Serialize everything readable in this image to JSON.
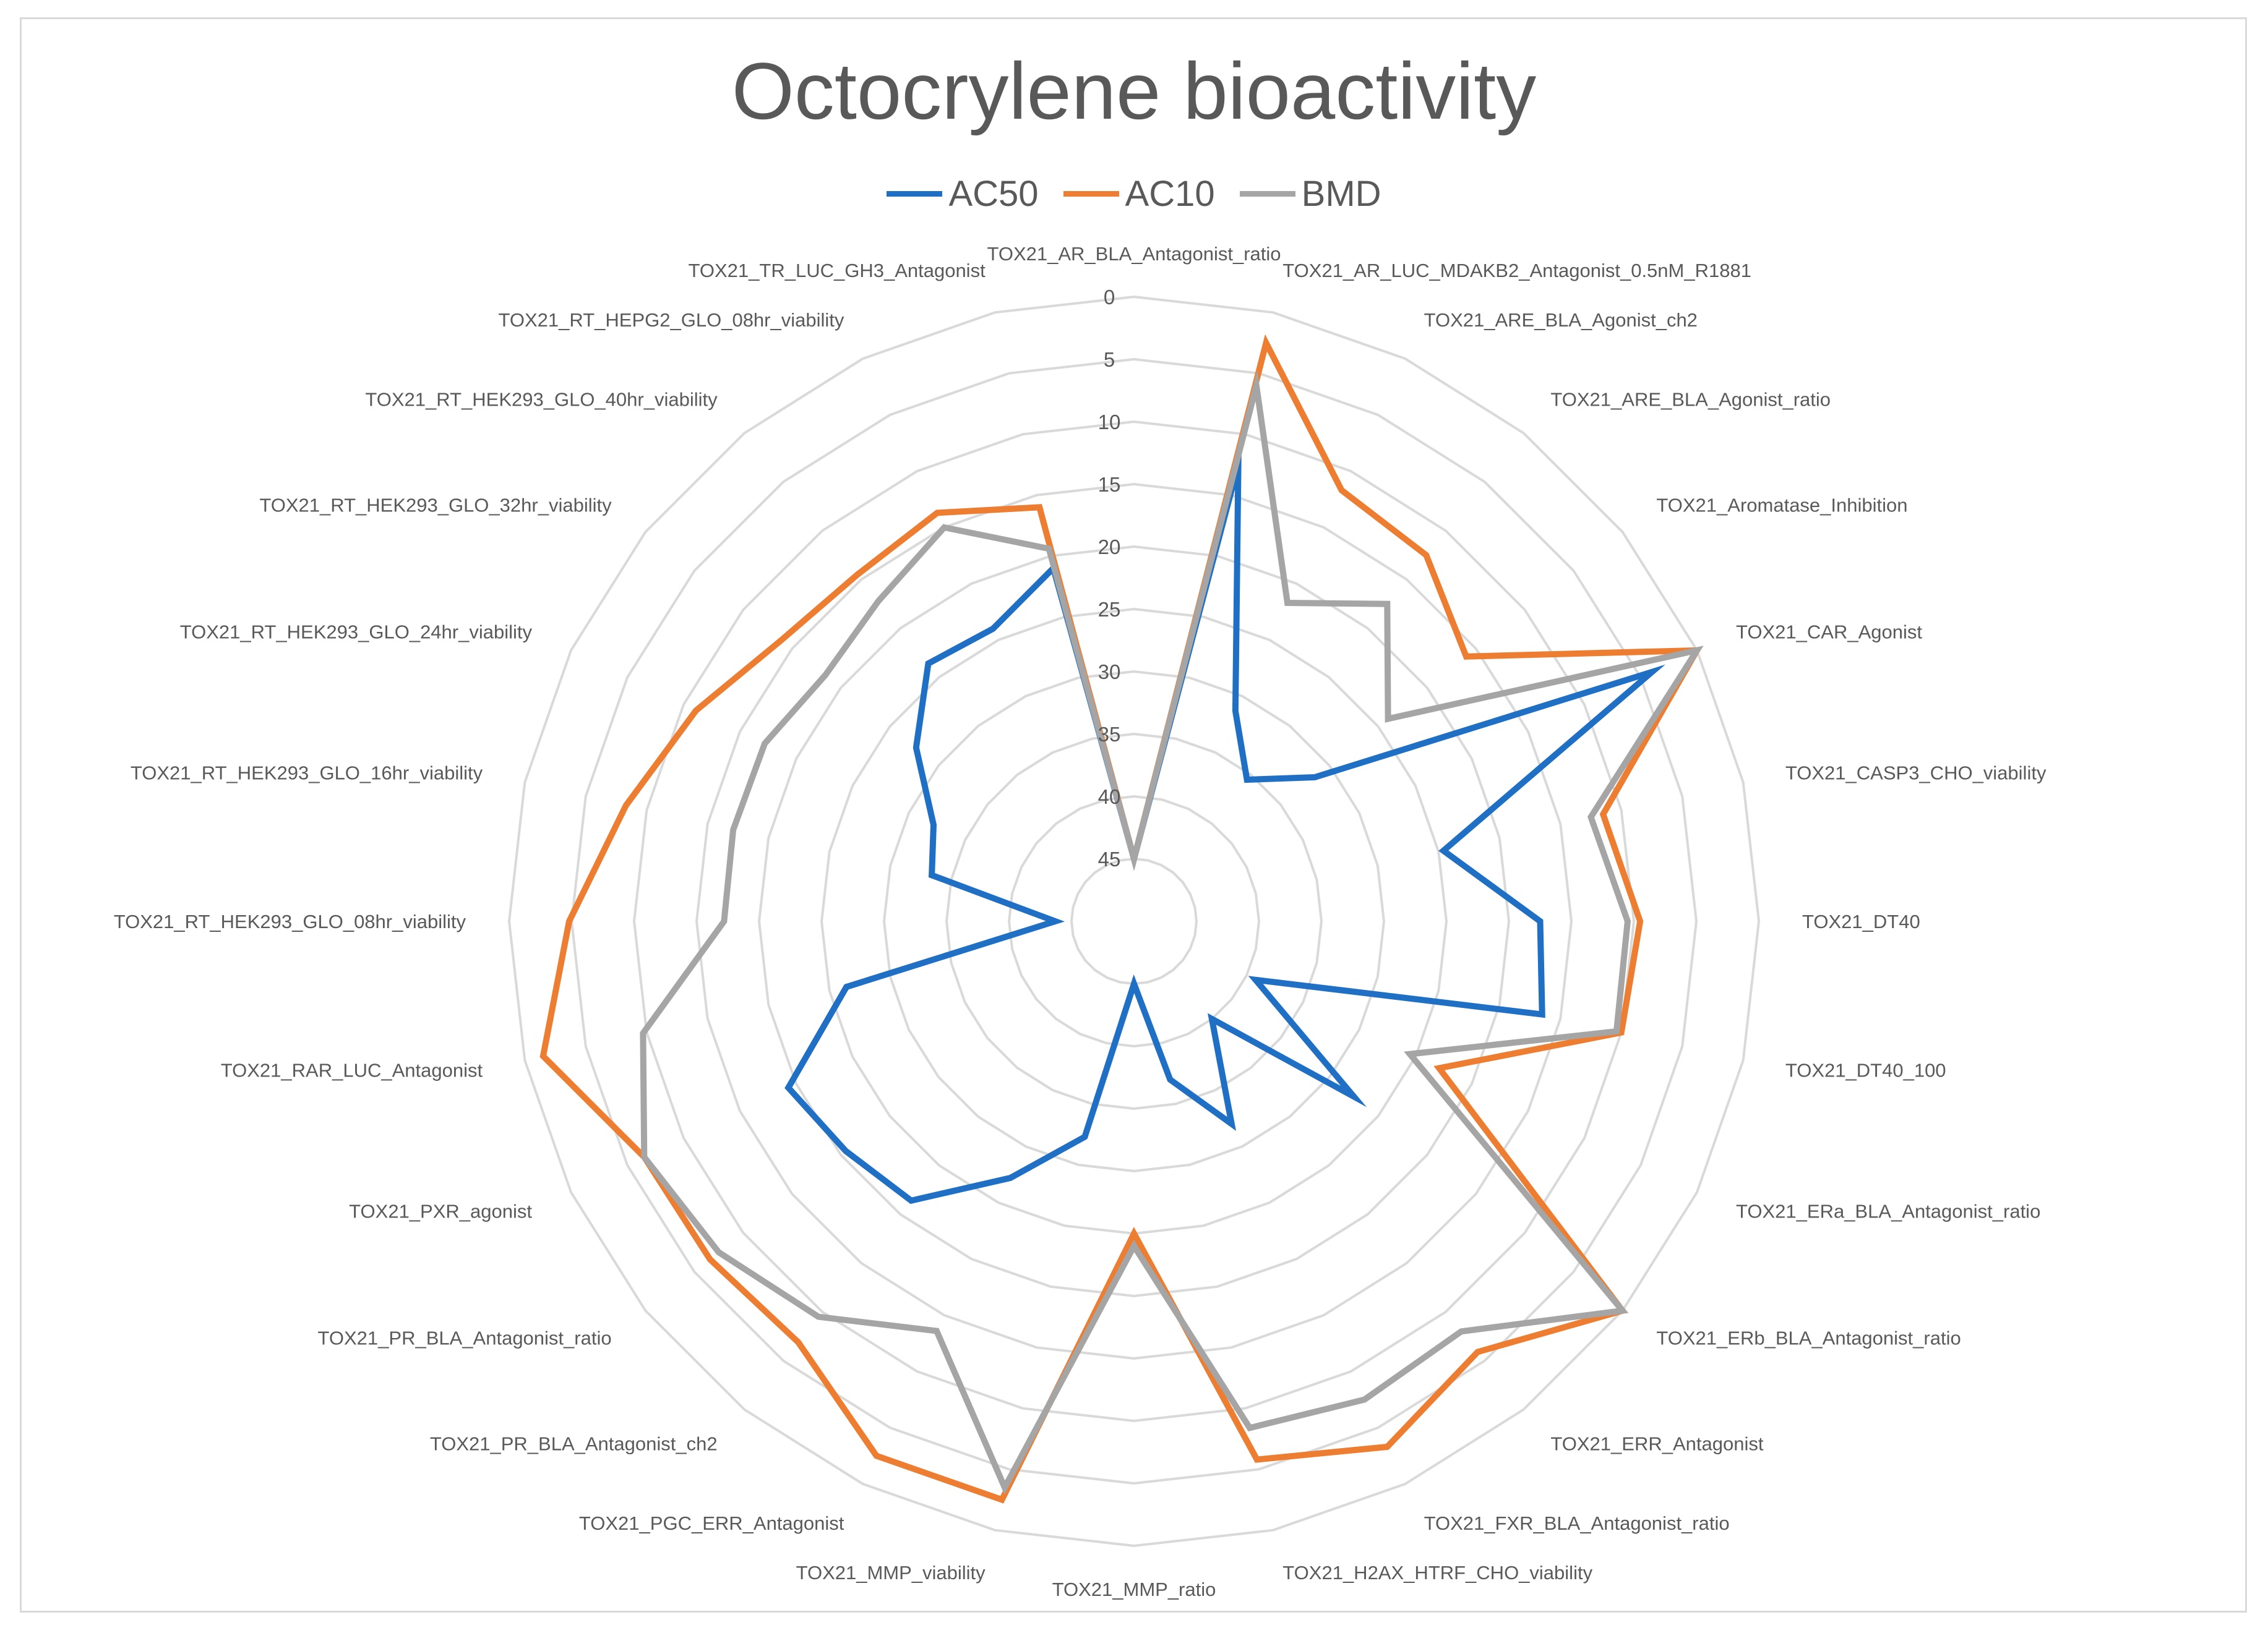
{
  "chart_data": {
    "type": "radar",
    "title": "Octocrylene bioactivity",
    "legend_position": "top",
    "grid": true,
    "r_axis": {
      "ticks": [
        0,
        5,
        10,
        15,
        20,
        25,
        30,
        35,
        40,
        45
      ],
      "range": [
        0,
        50
      ],
      "direction": "0 at outer edge, 50 at center"
    },
    "categories": [
      "TOX21_AR_BLA_Antagonist_ratio",
      "TOX21_AR_LUC_MDAKB2_Antagonist_0.5nM_R1881",
      "TOX21_ARE_BLA_Agonist_ch2",
      "TOX21_ARE_BLA_Agonist_ratio",
      "TOX21_Aromatase_Inhibition",
      "TOX21_CAR_Agonist",
      "TOX21_CASP3_CHO_viability",
      "TOX21_DT40",
      "TOX21_DT40_100",
      "TOX21_ERa_BLA_Antagonist_ratio",
      "TOX21_ERb_BLA_Antagonist_ratio",
      "TOX21_ERR_Antagonist",
      "TOX21_FXR_BLA_Antagonist_ratio",
      "TOX21_H2AX_HTRF_CHO_viability",
      "TOX21_MMP_ratio",
      "TOX21_MMP_viability",
      "TOX21_PGC_ERR_Antagonist",
      "TOX21_PR_BLA_Antagonist_ch2",
      "TOX21_PR_BLA_Antagonist_ratio",
      "TOX21_PXR_agonist",
      "TOX21_RAR_LUC_Antagonist",
      "TOX21_RT_HEK293_GLO_08hr_viability",
      "TOX21_RT_HEK293_GLO_16hr_viability",
      "TOX21_RT_HEK293_GLO_24hr_viability",
      "TOX21_RT_HEK293_GLO_32hr_viability",
      "TOX21_RT_HEK293_GLO_40hr_viability",
      "TOX21_RT_HEPG2_GLO_08hr_viability",
      "TOX21_TR_LUC_GH3_Antagonist"
    ],
    "series": [
      {
        "name": "AC50",
        "color": "#1f6fc5",
        "values": [
          45,
          12.5,
          31.3,
          35.5,
          31.5,
          4.0,
          24.6,
          17.5,
          16.5,
          39.2,
          27.5,
          40.0,
          32.0,
          37.0,
          45.0,
          32.3,
          27.2,
          21.4,
          20.5,
          19.3,
          26.4,
          43.7,
          33.4,
          32.2,
          27.7,
          23.6,
          24.0,
          21.0
        ]
      },
      {
        "name": "AC10",
        "color": "#ed7d31",
        "values": [
          45,
          2.5,
          11.7,
          12.5,
          16.0,
          0.0,
          11.5,
          9.5,
          10.0,
          22.9,
          0.0,
          5.9,
          3.3,
          5.8,
          25.0,
          2.5,
          2.5,
          6.9,
          6.6,
          6.5,
          1.5,
          4.8,
          8.3,
          11.1,
          13.9,
          14.5,
          13.7,
          16.0
        ]
      },
      {
        "name": "BMD",
        "color": "#a5a5a5",
        "values": [
          45,
          6.0,
          21.7,
          17.5,
          24.0,
          0.0,
          12.5,
          10.5,
          10.4,
          25.5,
          0.0,
          8.0,
          7.5,
          8.4,
          24.0,
          3.5,
          13.6,
          9.5,
          7.5,
          6.5,
          9.7,
          17.2,
          17.1,
          17.2,
          18.4,
          17.2,
          15.0,
          19.4
        ]
      }
    ]
  }
}
